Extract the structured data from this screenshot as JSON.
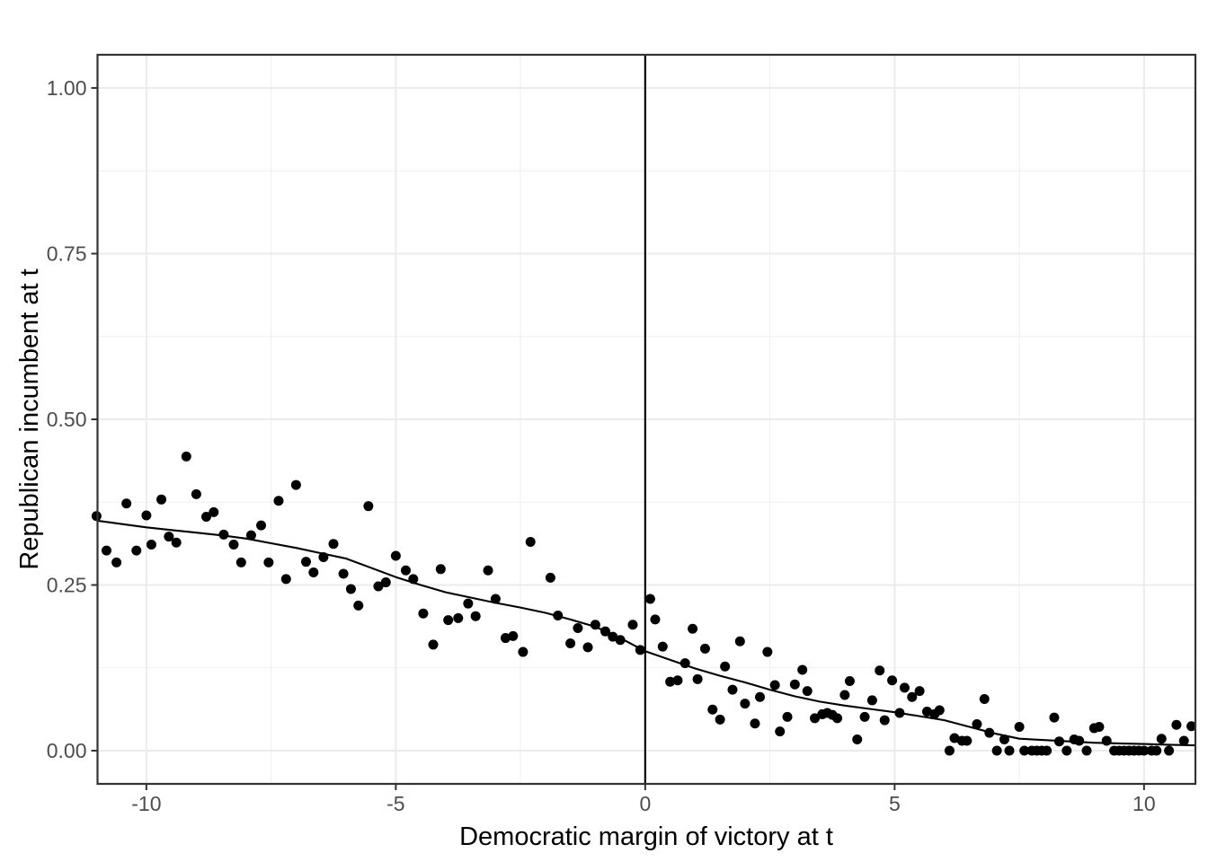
{
  "chart_data": {
    "type": "scatter",
    "title": "",
    "xlabel": "Democratic margin of victory at t",
    "ylabel": "Republican incumbent at t",
    "xlim": [
      -10.98,
      11.03
    ],
    "ylim": [
      -0.0501,
      1.0501
    ],
    "x_ticks": [
      -10,
      -5,
      0,
      5,
      10
    ],
    "x_tick_labels": [
      "-10",
      "-5",
      "0",
      "5",
      "10"
    ],
    "y_ticks": [
      0,
      0.25,
      0.5,
      0.75,
      1
    ],
    "y_tick_labels": [
      "0.00",
      "0.25",
      "0.50",
      "0.75",
      "1.00"
    ],
    "x_minor_ticks": [
      -7.5,
      -2.5,
      2.5,
      7.5
    ],
    "y_minor_ticks": [
      0.125,
      0.375,
      0.625,
      0.875
    ],
    "grid": true,
    "legend": "none",
    "cutoff_line_x": 0,
    "points": [
      [
        -11.0,
        0.354
      ],
      [
        -10.8,
        0.302
      ],
      [
        -10.6,
        0.284
      ],
      [
        -10.4,
        0.373
      ],
      [
        -10.2,
        0.302
      ],
      [
        -10.0,
        0.355
      ],
      [
        -9.9,
        0.311
      ],
      [
        -9.7,
        0.379
      ],
      [
        -9.55,
        0.323
      ],
      [
        -9.4,
        0.314
      ],
      [
        -9.2,
        0.444
      ],
      [
        -9.0,
        0.387
      ],
      [
        -8.8,
        0.353
      ],
      [
        -8.65,
        0.36
      ],
      [
        -8.45,
        0.326
      ],
      [
        -8.25,
        0.311
      ],
      [
        -8.1,
        0.284
      ],
      [
        -7.9,
        0.325
      ],
      [
        -7.7,
        0.34
      ],
      [
        -7.55,
        0.284
      ],
      [
        -7.35,
        0.377
      ],
      [
        -7.2,
        0.259
      ],
      [
        -7.0,
        0.401
      ],
      [
        -6.8,
        0.285
      ],
      [
        -6.65,
        0.269
      ],
      [
        -6.45,
        0.292
      ],
      [
        -6.25,
        0.312
      ],
      [
        -6.05,
        0.267
      ],
      [
        -5.9,
        0.244
      ],
      [
        -5.75,
        0.219
      ],
      [
        -5.55,
        0.369
      ],
      [
        -5.35,
        0.248
      ],
      [
        -5.2,
        0.254
      ],
      [
        -5.0,
        0.294
      ],
      [
        -4.8,
        0.272
      ],
      [
        -4.65,
        0.259
      ],
      [
        -4.45,
        0.207
      ],
      [
        -4.25,
        0.16
      ],
      [
        -4.1,
        0.274
      ],
      [
        -3.95,
        0.197
      ],
      [
        -3.75,
        0.2
      ],
      [
        -3.55,
        0.222
      ],
      [
        -3.4,
        0.203
      ],
      [
        -3.15,
        0.272
      ],
      [
        -3.0,
        0.229
      ],
      [
        -2.8,
        0.17
      ],
      [
        -2.65,
        0.173
      ],
      [
        -2.45,
        0.149
      ],
      [
        -2.3,
        0.315
      ],
      [
        -1.9,
        0.261
      ],
      [
        -1.75,
        0.204
      ],
      [
        -1.5,
        0.162
      ],
      [
        -1.35,
        0.185
      ],
      [
        -1.15,
        0.156
      ],
      [
        -1.0,
        0.19
      ],
      [
        -0.8,
        0.18
      ],
      [
        -0.65,
        0.172
      ],
      [
        -0.5,
        0.167
      ],
      [
        -0.25,
        0.19
      ],
      [
        -0.1,
        0.152
      ],
      [
        0.1,
        0.229
      ],
      [
        0.2,
        0.198
      ],
      [
        0.35,
        0.157
      ],
      [
        0.5,
        0.104
      ],
      [
        0.65,
        0.106
      ],
      [
        0.8,
        0.132
      ],
      [
        0.95,
        0.184
      ],
      [
        1.05,
        0.108
      ],
      [
        1.2,
        0.154
      ],
      [
        1.35,
        0.062
      ],
      [
        1.5,
        0.047
      ],
      [
        1.6,
        0.127
      ],
      [
        1.75,
        0.092
      ],
      [
        1.9,
        0.165
      ],
      [
        2.0,
        0.071
      ],
      [
        2.2,
        0.041
      ],
      [
        2.3,
        0.081
      ],
      [
        2.45,
        0.149
      ],
      [
        2.6,
        0.099
      ],
      [
        2.7,
        0.029
      ],
      [
        2.85,
        0.051
      ],
      [
        3.0,
        0.1
      ],
      [
        3.15,
        0.122
      ],
      [
        3.25,
        0.09
      ],
      [
        3.4,
        0.049
      ],
      [
        3.55,
        0.055
      ],
      [
        3.65,
        0.057
      ],
      [
        3.75,
        0.054
      ],
      [
        3.85,
        0.049
      ],
      [
        4.0,
        0.084
      ],
      [
        4.1,
        0.105
      ],
      [
        4.25,
        0.017
      ],
      [
        4.4,
        0.051
      ],
      [
        4.55,
        0.076
      ],
      [
        4.7,
        0.121
      ],
      [
        4.8,
        0.046
      ],
      [
        4.95,
        0.106
      ],
      [
        5.1,
        0.057
      ],
      [
        5.2,
        0.095
      ],
      [
        5.35,
        0.081
      ],
      [
        5.5,
        0.09
      ],
      [
        5.65,
        0.059
      ],
      [
        5.8,
        0.055
      ],
      [
        5.9,
        0.061
      ],
      [
        6.1,
        0.0
      ],
      [
        6.2,
        0.019
      ],
      [
        6.35,
        0.015
      ],
      [
        6.45,
        0.015
      ],
      [
        6.65,
        0.04
      ],
      [
        6.8,
        0.078
      ],
      [
        6.9,
        0.027
      ],
      [
        7.05,
        0.0
      ],
      [
        7.2,
        0.017
      ],
      [
        7.3,
        0.0
      ],
      [
        7.5,
        0.036
      ],
      [
        7.6,
        0.0
      ],
      [
        7.75,
        0.0
      ],
      [
        7.85,
        0.0
      ],
      [
        7.95,
        0.0
      ],
      [
        8.05,
        0.0
      ],
      [
        8.2,
        0.05
      ],
      [
        8.3,
        0.014
      ],
      [
        8.45,
        0.0
      ],
      [
        8.6,
        0.017
      ],
      [
        8.7,
        0.015
      ],
      [
        8.85,
        0.0
      ],
      [
        9.0,
        0.034
      ],
      [
        9.1,
        0.036
      ],
      [
        9.25,
        0.015
      ],
      [
        9.4,
        0.0
      ],
      [
        9.5,
        0.0
      ],
      [
        9.6,
        0.0
      ],
      [
        9.7,
        0.0
      ],
      [
        9.8,
        0.0
      ],
      [
        9.9,
        0.0
      ],
      [
        10.0,
        0.0
      ],
      [
        10.15,
        0.0
      ],
      [
        10.25,
        0.0
      ],
      [
        10.35,
        0.018
      ],
      [
        10.5,
        0.0
      ],
      [
        10.65,
        0.039
      ],
      [
        10.8,
        0.015
      ],
      [
        10.95,
        0.037
      ]
    ],
    "smooth_line": [
      [
        -10.98,
        0.347
      ],
      [
        -10.5,
        0.342
      ],
      [
        -10.0,
        0.337
      ],
      [
        -9.5,
        0.333
      ],
      [
        -9.0,
        0.329
      ],
      [
        -8.5,
        0.325
      ],
      [
        -8.0,
        0.32
      ],
      [
        -7.5,
        0.313
      ],
      [
        -7.0,
        0.306
      ],
      [
        -6.5,
        0.298
      ],
      [
        -6.0,
        0.29
      ],
      [
        -5.5,
        0.276
      ],
      [
        -5.0,
        0.262
      ],
      [
        -4.5,
        0.25
      ],
      [
        -4.0,
        0.239
      ],
      [
        -3.5,
        0.231
      ],
      [
        -3.0,
        0.223
      ],
      [
        -2.5,
        0.216
      ],
      [
        -2.0,
        0.208
      ],
      [
        -1.5,
        0.198
      ],
      [
        -1.0,
        0.187
      ],
      [
        -0.5,
        0.17
      ],
      [
        0.0,
        0.15
      ],
      [
        0.5,
        0.137
      ],
      [
        1.0,
        0.124
      ],
      [
        1.5,
        0.113
      ],
      [
        2.0,
        0.103
      ],
      [
        2.5,
        0.092
      ],
      [
        3.0,
        0.082
      ],
      [
        3.5,
        0.074
      ],
      [
        4.0,
        0.068
      ],
      [
        4.5,
        0.063
      ],
      [
        5.0,
        0.058
      ],
      [
        5.5,
        0.052
      ],
      [
        6.0,
        0.046
      ],
      [
        6.5,
        0.036
      ],
      [
        7.0,
        0.026
      ],
      [
        7.5,
        0.018
      ],
      [
        8.0,
        0.016
      ],
      [
        8.5,
        0.014
      ],
      [
        9.0,
        0.012
      ],
      [
        9.5,
        0.011
      ],
      [
        10.0,
        0.01
      ],
      [
        10.5,
        0.009
      ],
      [
        11.03,
        0.008
      ]
    ],
    "colors": {
      "point": "#000000",
      "smooth_line": "#000000",
      "cutoff_line": "#000000",
      "grid_major": "#ebebeb",
      "grid_minor": "#efefef",
      "panel_border": "#333333",
      "tick_mark": "#333333",
      "tick_text": "#4d4d4d",
      "axis_title": "#000000",
      "background": "#ffffff"
    }
  }
}
